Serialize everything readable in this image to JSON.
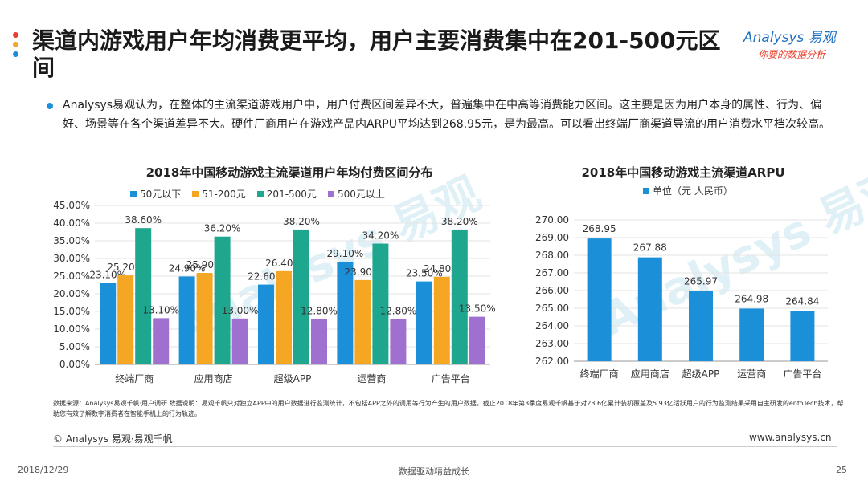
{
  "header": {
    "title": "渠道内游戏用户年均消费更平均，用户主要消费集中在201-500元区间",
    "logo_brand": "Analysys 易观",
    "logo_tagline": "你要的数据分析",
    "dot_colors": [
      "#e8402f",
      "#f5a623",
      "#1b8fd8"
    ]
  },
  "intro": "Analysys易观认为，在整体的主流渠道游戏用户中，用户付费区间差异不大，普遍集中在中高等消费能力区间。这主要是因为用户本身的属性、行为、偏好、场景等在各个渠道差异不大。硬件厂商用户在游戏产品内ARPU平均达到268.95元，是为最高。可以看出终端厂商渠道导流的用户消费水平档次较高。",
  "watermark": "Analysys 易观",
  "chart_data": [
    {
      "type": "bar",
      "title": "2018年中国移动游戏主流渠道用户年均付费区间分布",
      "categories": [
        "终端厂商",
        "应用商店",
        "超级APP",
        "运营商",
        "广告平台"
      ],
      "ylim": [
        0,
        45
      ],
      "yticks": [
        "0.00%",
        "5.00%",
        "10.00%",
        "15.00%",
        "20.00%",
        "25.00%",
        "30.00%",
        "35.00%",
        "40.00%",
        "45.00%"
      ],
      "legend_position": "top",
      "grid": true,
      "series": [
        {
          "name": "50元以下",
          "color": "#1b8fd8",
          "values": [
            23.1,
            24.9,
            22.6,
            29.1,
            23.5
          ],
          "labels": [
            "23.10%",
            "24.90%",
            "22.60%",
            "29.10%",
            "23.50%"
          ]
        },
        {
          "name": "51-200元",
          "color": "#f5a623",
          "values": [
            25.2,
            25.9,
            26.4,
            23.9,
            24.8
          ],
          "labels": [
            "25.20%",
            "25.90%",
            "26.40%",
            "23.90%",
            "24.80%"
          ]
        },
        {
          "name": "201-500元",
          "color": "#1fa68f",
          "values": [
            38.6,
            36.2,
            38.2,
            34.2,
            38.2
          ],
          "labels": [
            "38.60%",
            "36.20%",
            "38.20%",
            "34.20%",
            "38.20%"
          ]
        },
        {
          "name": "500元以上",
          "color": "#a070d0",
          "values": [
            13.1,
            13.0,
            12.8,
            12.8,
            13.5
          ],
          "labels": [
            "13.10%",
            "13.00%",
            "12.80%",
            "12.80%",
            "13.50%"
          ]
        }
      ]
    },
    {
      "type": "bar",
      "title": "2018年中国移动游戏主流渠道ARPU",
      "categories": [
        "终端厂商",
        "应用商店",
        "超级APP",
        "运营商",
        "广告平台"
      ],
      "ylim": [
        262,
        270
      ],
      "yticks": [
        "262.00",
        "263.00",
        "264.00",
        "265.00",
        "266.00",
        "267.00",
        "268.00",
        "269.00",
        "270.00"
      ],
      "legend_position": "top",
      "grid": true,
      "series": [
        {
          "name": "单位（元 人民币）",
          "color": "#1b8fd8",
          "values": [
            268.95,
            267.88,
            265.97,
            264.98,
            264.84
          ],
          "labels": [
            "268.95",
            "267.88",
            "265.97",
            "264.98",
            "264.84"
          ]
        }
      ]
    }
  ],
  "source": "数据来源：Analysys易观千帆·用户调研   数据说明：易观千帆只对独立APP中的用户数据进行监测统计，不包括APP之外的调用等行为产生的用户数据。截止2018年第3季度易观千帆基于对23.6亿累计装机覆盖及5.93亿活跃用户的行为监测结果采用自主研发的enfoTech技术，帮助您有效了解数字消费者在智能手机上的行为轨迹。",
  "footer": {
    "copyright": "© Analysys 易观·易观千帆",
    "site": "www.analysys.cn",
    "date": "2018/12/29",
    "tagline": "数据驱动精益成长",
    "page": "25"
  }
}
